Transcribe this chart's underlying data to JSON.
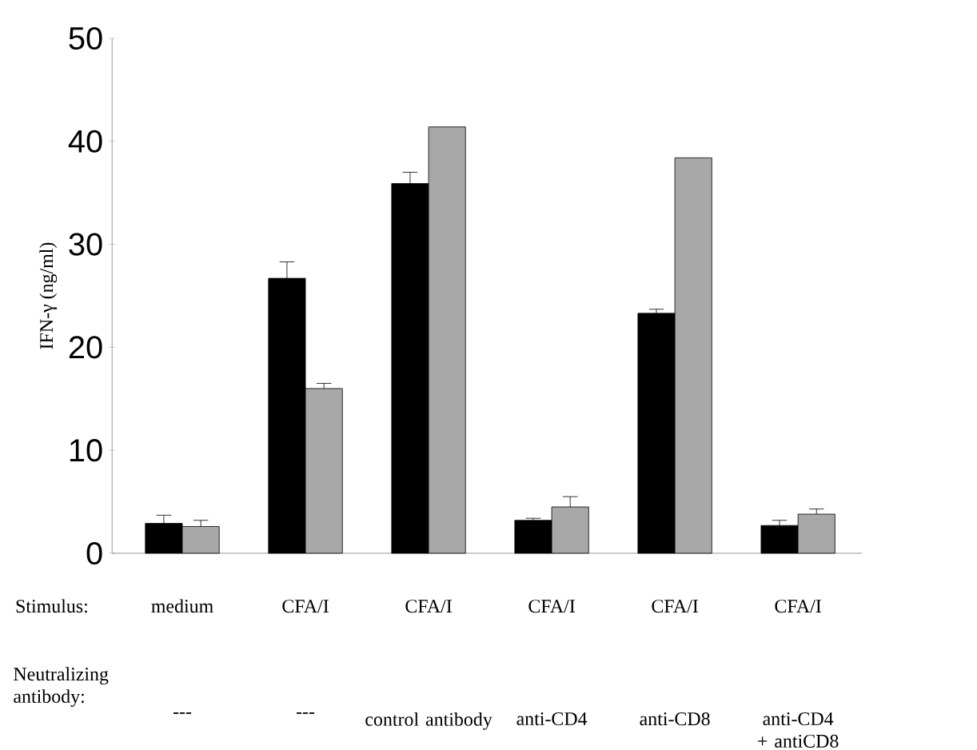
{
  "chart_data": {
    "type": "bar",
    "ylabel": "IFN-γ (ng/ml)",
    "categories": [
      "medium",
      "CFA/I",
      "CFA/I",
      "CFA/I",
      "CFA/I",
      "CFA/I"
    ],
    "series": [
      {
        "color": "#000000",
        "values": [
          2.9,
          26.7,
          35.9,
          3.2,
          23.3,
          2.7
        ],
        "errors": [
          0.8,
          1.6,
          1.1,
          0.2,
          0.4,
          0.5
        ]
      },
      {
        "color": "#a8a8a8",
        "values": [
          2.6,
          16.0,
          41.4,
          4.5,
          38.4,
          3.8
        ],
        "errors": [
          0.6,
          0.5,
          null,
          1.0,
          null,
          0.5
        ]
      }
    ],
    "ylim": [
      0,
      50
    ],
    "yticks": [
      0,
      10,
      20,
      30,
      40,
      50
    ],
    "annotations": [
      "Stimulus:",
      "Neutralizing antibody:",
      "---",
      "---",
      "control antibody",
      "anti-CD4",
      "anti-CD8",
      "anti-CD4 + antiCD8"
    ]
  }
}
